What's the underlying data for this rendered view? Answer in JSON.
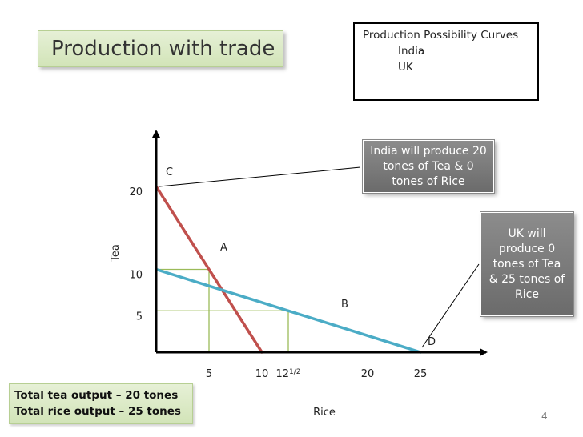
{
  "slide": {
    "title": "Production with trade",
    "page_number": "4",
    "legend": {
      "title": "Production Possibility Curves",
      "items": [
        {
          "marker": "_____",
          "label": "India"
        },
        {
          "marker": "_____",
          "label": "UK"
        }
      ]
    },
    "callout_india": "India will produce 20 tones of Tea & 0 tones of Rice",
    "callout_uk": "UK will produce 0 tones of Tea & 25 tones of Rice",
    "totals": [
      "Total tea output – 20 tones",
      "Total rice output – 25 tones"
    ]
  },
  "colors": {
    "india": "#c0504d",
    "uk": "#4bacc6",
    "guides": "#9bbb59",
    "title_fill": "#d7e4bd"
  },
  "chart_data": {
    "type": "line",
    "xlabel": "Rice",
    "ylabel": "Tea",
    "x_ticks": [
      {
        "value": 5,
        "label": "5"
      },
      {
        "value": 10,
        "label": "10"
      },
      {
        "value": 12.5,
        "label": "12",
        "sup": "1/2"
      },
      {
        "value": 20,
        "label": "20"
      },
      {
        "value": 25,
        "label": "25"
      }
    ],
    "y_ticks": [
      {
        "value": 5,
        "label": "5"
      },
      {
        "value": 10,
        "label": "10"
      },
      {
        "value": 20,
        "label": "20"
      }
    ],
    "series": [
      {
        "name": "India",
        "points": [
          [
            0,
            20
          ],
          [
            10,
            0
          ]
        ]
      },
      {
        "name": "UK",
        "points": [
          [
            0,
            10
          ],
          [
            25,
            0
          ]
        ]
      }
    ],
    "point_labels": [
      {
        "label": "C",
        "x": 0,
        "y": 20
      },
      {
        "label": "A",
        "x": 5,
        "y": 10
      },
      {
        "label": "B",
        "x": 12.5,
        "y": 5
      },
      {
        "label": "D",
        "x": 25,
        "y": 0
      }
    ],
    "guides": [
      {
        "x": 5,
        "y": 10
      },
      {
        "x": 12.5,
        "y": 5
      }
    ]
  }
}
